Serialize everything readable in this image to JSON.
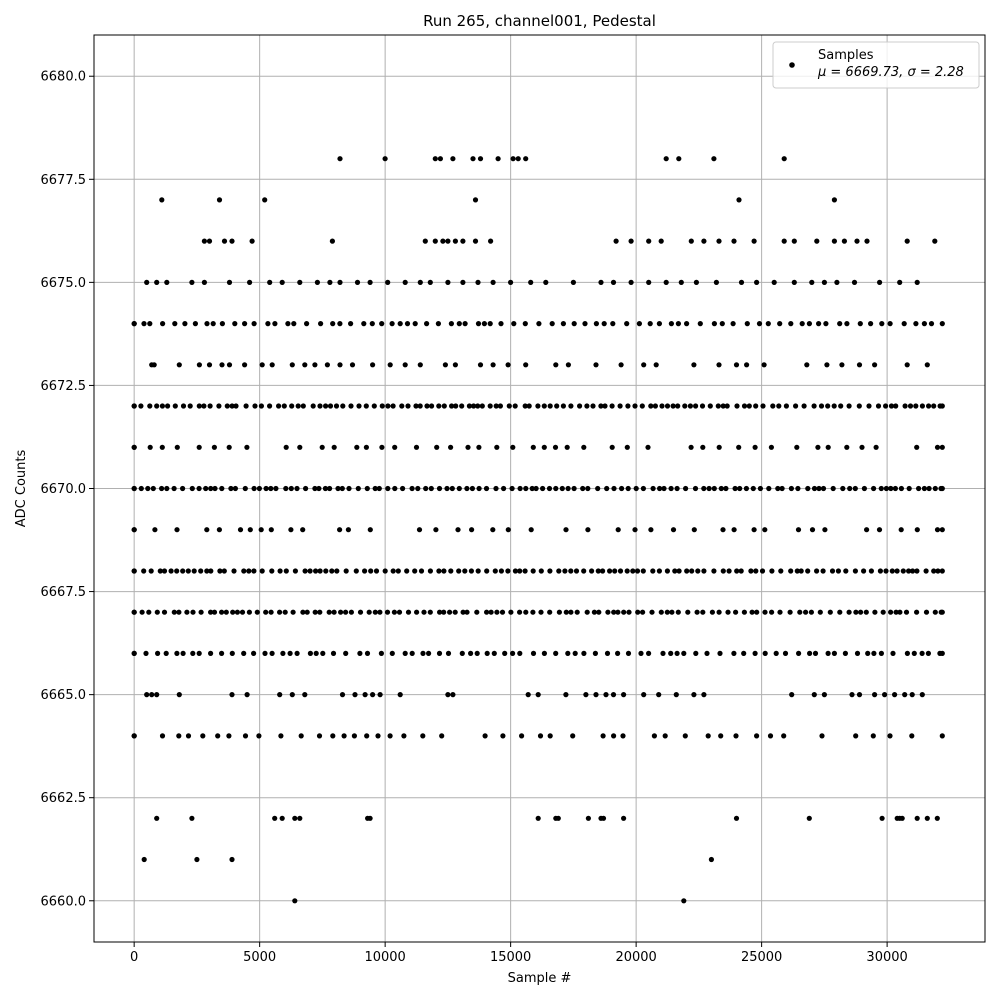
{
  "chart_data": {
    "type": "scatter",
    "title": "Run 265, channel001, Pedestal",
    "xlabel": "Sample #",
    "ylabel": "ADC Counts",
    "xlim": [
      -1600,
      33900
    ],
    "ylim": [
      6659.0,
      6681.0
    ],
    "xticks": [
      0,
      5000,
      10000,
      15000,
      20000,
      25000,
      30000
    ],
    "yticks": [
      6660.0,
      6662.5,
      6665.0,
      6667.5,
      6670.0,
      6672.5,
      6675.0,
      6677.5,
      6680.0
    ],
    "xtick_labels": [
      "0",
      "5000",
      "10000",
      "15000",
      "20000",
      "25000",
      "30000"
    ],
    "ytick_labels": [
      "6660.0",
      "6662.5",
      "6665.0",
      "6667.5",
      "6670.0",
      "6672.5",
      "6675.0",
      "6677.5",
      "6680.0"
    ],
    "grid": true,
    "legend": {
      "placement": "top-right",
      "label": "Samples",
      "stats": "μ = 6669.73, σ = 2.28"
    },
    "marker_color": "#000000",
    "x_max": 32200,
    "bands": [
      {
        "y": 6664,
        "x_start": 0,
        "x_end": 32200,
        "density": "medium"
      },
      {
        "y": 6666,
        "x_start": 0,
        "x_end": 32200,
        "density": "dense"
      },
      {
        "y": 6667,
        "x_start": 0,
        "x_end": 32200,
        "density": "continuous"
      },
      {
        "y": 6668,
        "x_start": 0,
        "x_end": 32200,
        "density": "continuous"
      },
      {
        "y": 6669,
        "x_start": 0,
        "x_end": 32200,
        "density": "medium"
      },
      {
        "y": 6670,
        "x_start": 0,
        "x_end": 32200,
        "density": "continuous"
      },
      {
        "y": 6671,
        "x_start": 0,
        "x_end": 32200,
        "density": "medium"
      },
      {
        "y": 6672,
        "x_start": 0,
        "x_end": 32200,
        "density": "continuous"
      },
      {
        "y": 6674,
        "x_start": 0,
        "x_end": 32200,
        "density": "dense"
      }
    ],
    "sparse_levels": [
      {
        "y": 6665,
        "x": [
          500,
          700,
          900,
          1800,
          3900,
          4500,
          5800,
          6300,
          6800,
          8300,
          8800,
          9200,
          9500,
          9800,
          10600,
          12500,
          12700,
          15700,
          16100,
          17200,
          18000,
          18400,
          18800,
          19100,
          19500,
          20300,
          20900,
          21600,
          22300,
          22700,
          26200,
          27100,
          27500,
          28600,
          28900,
          29500,
          29900,
          30300,
          30700,
          31000,
          31400
        ]
      },
      {
        "y": 6673,
        "x": [
          700,
          800,
          1800,
          2600,
          3000,
          3500,
          3800,
          4400,
          5100,
          5500,
          6300,
          6800,
          7200,
          7700,
          8200,
          8700,
          9500,
          10200,
          10800,
          11400,
          12400,
          12800,
          13800,
          14300,
          14900,
          15600,
          16800,
          17300,
          18400,
          19400,
          20300,
          20800,
          22300,
          23300,
          24000,
          24400,
          25100,
          26800,
          27600,
          28200,
          28900,
          29500,
          30800,
          31600
        ]
      },
      {
        "y": 6675,
        "x": [
          500,
          900,
          1300,
          2300,
          2800,
          3800,
          4600,
          5400,
          5900,
          6600,
          7300,
          7800,
          8200,
          8900,
          9400,
          10100,
          10800,
          11400,
          11800,
          12500,
          13100,
          13700,
          14300,
          15000,
          15800,
          16400,
          17500,
          18600,
          19100,
          19800,
          20500,
          21200,
          21800,
          22400,
          23200,
          24200,
          24800,
          25500,
          26300,
          27000,
          27500,
          28000,
          28700,
          29700,
          30500,
          31200
        ]
      },
      {
        "y": 6676,
        "x": [
          2800,
          3000,
          3600,
          3900,
          4700,
          7900,
          11600,
          12000,
          12300,
          12500,
          12800,
          13100,
          13600,
          14200,
          19200,
          19800,
          20500,
          21000,
          22200,
          22700,
          23300,
          23900,
          24700,
          25900,
          26300,
          27200,
          27900,
          28300,
          28800,
          29200,
          30800,
          31900
        ]
      },
      {
        "y": 6677,
        "x": [
          1100,
          3400,
          5200,
          13600,
          24100,
          27900
        ]
      },
      {
        "y": 6678,
        "x": [
          8200,
          10000,
          12000,
          12200,
          12700,
          13500,
          13800,
          14500,
          15100,
          15300,
          15600,
          21200,
          21700,
          23100,
          25900
        ]
      },
      {
        "y": 6662,
        "x": [
          900,
          2300,
          5600,
          5900,
          6400,
          6600,
          9300,
          9400,
          16100,
          16800,
          16900,
          18100,
          18600,
          18700,
          19500,
          24000,
          26900,
          29800,
          30400,
          30500,
          30600,
          31200,
          31600,
          32000
        ]
      },
      {
        "y": 6661,
        "x": [
          400,
          2500,
          3900,
          23000
        ]
      },
      {
        "y": 6660,
        "x": [
          6400,
          21900
        ]
      }
    ]
  }
}
